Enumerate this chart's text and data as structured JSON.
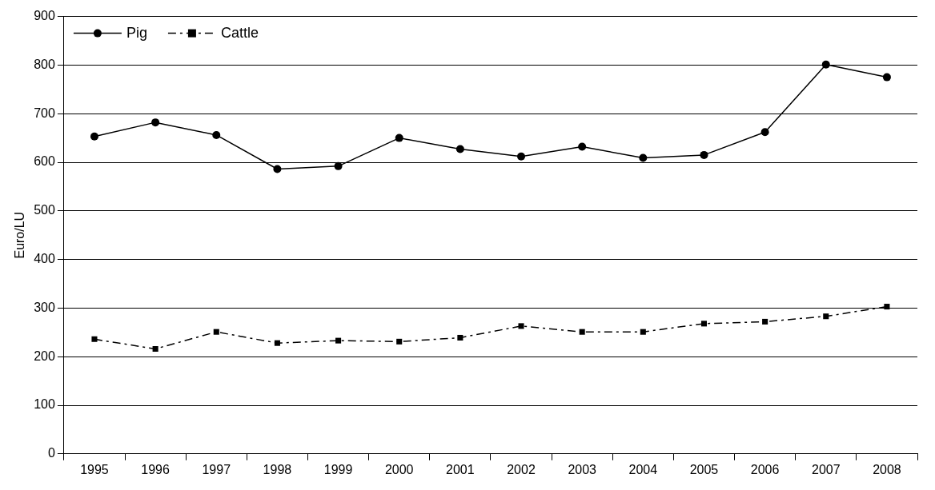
{
  "chart_data": {
    "type": "line",
    "ylabel": "Euro/LU",
    "categories": [
      "1995",
      "1996",
      "1997",
      "1998",
      "1999",
      "2000",
      "2001",
      "2002",
      "2003",
      "2004",
      "2005",
      "2006",
      "2007",
      "2008"
    ],
    "series": [
      {
        "name": "Pig",
        "color": "#000000",
        "marker": "circle",
        "line_style": "solid",
        "values": [
          653,
          682,
          656,
          586,
          592,
          650,
          627,
          612,
          632,
          609,
          615,
          662,
          801,
          775
        ]
      },
      {
        "name": "Cattle",
        "color": "#000000",
        "marker": "square",
        "line_style": "dashed",
        "values": [
          236,
          216,
          251,
          228,
          233,
          231,
          239,
          263,
          251,
          251,
          268,
          272,
          283,
          303
        ]
      }
    ],
    "ylim": [
      0,
      900
    ],
    "yticks": [
      0,
      100,
      200,
      300,
      400,
      500,
      600,
      700,
      800,
      900
    ],
    "grid": "y",
    "legend": "top left"
  }
}
